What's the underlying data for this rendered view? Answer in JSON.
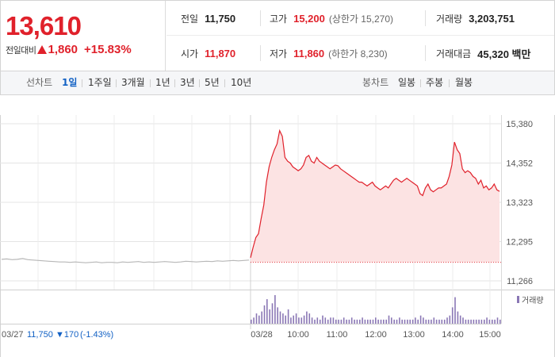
{
  "summary": {
    "price": "13,610",
    "change_label": "전일대비",
    "change_value": "1,860",
    "change_rate": "+15.83%",
    "prev_close_label": "전일",
    "prev_close": "11,750",
    "high_label": "고가",
    "high": "15,200",
    "upper_limit": "(상한가 15,270)",
    "volume_label": "거래량",
    "volume": "3,203,751",
    "open_label": "시가",
    "open": "11,870",
    "low_label": "저가",
    "low": "11,860",
    "lower_limit": "(하한가 8,230)",
    "amount_label": "거래대금",
    "amount": "45,320 백만"
  },
  "toolbar": {
    "line_chart_label": "선차트",
    "line_periods": [
      "1일",
      "1주일",
      "3개월",
      "1년",
      "3년",
      "5년",
      "10년"
    ],
    "active_period": "1일",
    "candle_chart_label": "봉차트",
    "candle_periods": [
      "일봉",
      "주봉",
      "월봉"
    ]
  },
  "colors": {
    "up": "#e0212b",
    "down": "#1261c4",
    "volume": "#8a77b5",
    "prev_line": "#b7b7b7"
  },
  "chart_data": {
    "type": "area",
    "y_ticks": [
      "15,380",
      "14,352",
      "13,323",
      "12,295",
      "11,266"
    ],
    "ylim": [
      11266,
      15380
    ],
    "x_ticks": [
      "03/28",
      "10:00",
      "11:00",
      "12:00",
      "13:00",
      "14:00",
      "15:00"
    ],
    "prev_day": {
      "date": "03/27",
      "close": "11,750",
      "change": "▼170",
      "rate": "(-1.43%)",
      "points": [
        11830,
        11840,
        11820,
        11830,
        11850,
        11820,
        11810,
        11800,
        11790,
        11780,
        11770,
        11760,
        11760,
        11750,
        11760,
        11750,
        11740,
        11750,
        11760,
        11740,
        11750,
        11750,
        11740,
        11760,
        11750,
        11760,
        11770,
        11750,
        11760,
        11750,
        11760,
        11770,
        11760,
        11750,
        11760,
        11780,
        11770,
        11760,
        11770,
        11780,
        11770,
        11790,
        11780,
        11790,
        11800,
        11790,
        11800,
        11810
      ]
    },
    "baseline": 11750,
    "series": [
      {
        "values": [
          11870,
          12150,
          12400,
          12500,
          12900,
          13250,
          13850,
          14250,
          14500,
          14700,
          14850,
          15200,
          15050,
          14500,
          14400,
          14350,
          14250,
          14200,
          14150,
          14200,
          14300,
          14500,
          14550,
          14400,
          14350,
          14500,
          14400,
          14350,
          14300,
          14250,
          14200,
          14250,
          14300,
          14280,
          14200,
          14150,
          14100,
          14050,
          14000,
          13950,
          13900,
          13850,
          13850,
          13800,
          13750,
          13800,
          13850,
          13750,
          13700,
          13650,
          13700,
          13750,
          13700,
          13800,
          13900,
          13950,
          13900,
          13850,
          13900,
          13950,
          13900,
          13850,
          13800,
          13750,
          13550,
          13500,
          13700,
          13800,
          13650,
          13600,
          13650,
          13700,
          13700,
          13750,
          13800,
          14000,
          14300,
          14900,
          14700,
          14600,
          14200,
          14100,
          14150,
          14100,
          14000,
          13950,
          13800,
          13900,
          13700,
          13750,
          13650,
          13700,
          13800,
          13650,
          13610
        ]
      }
    ],
    "volume": [
      2,
      3,
      5,
      4,
      6,
      9,
      12,
      7,
      10,
      14,
      8,
      6,
      5,
      4,
      7,
      3,
      4,
      5,
      3,
      3,
      4,
      6,
      5,
      3,
      2,
      3,
      2,
      4,
      3,
      2,
      3,
      3,
      2,
      2,
      2,
      3,
      2,
      2,
      3,
      2,
      2,
      2,
      3,
      2,
      2,
      2,
      2,
      3,
      2,
      2,
      2,
      2,
      4,
      3,
      2,
      2,
      3,
      2,
      2,
      2,
      2,
      2,
      3,
      2,
      4,
      3,
      2,
      2,
      2,
      3,
      2,
      2,
      2,
      2,
      3,
      4,
      8,
      13,
      6,
      4,
      3,
      2,
      2,
      2,
      2,
      2,
      2,
      2,
      2,
      3,
      2,
      2,
      2,
      3,
      2
    ],
    "volume_legend": "거래량"
  }
}
